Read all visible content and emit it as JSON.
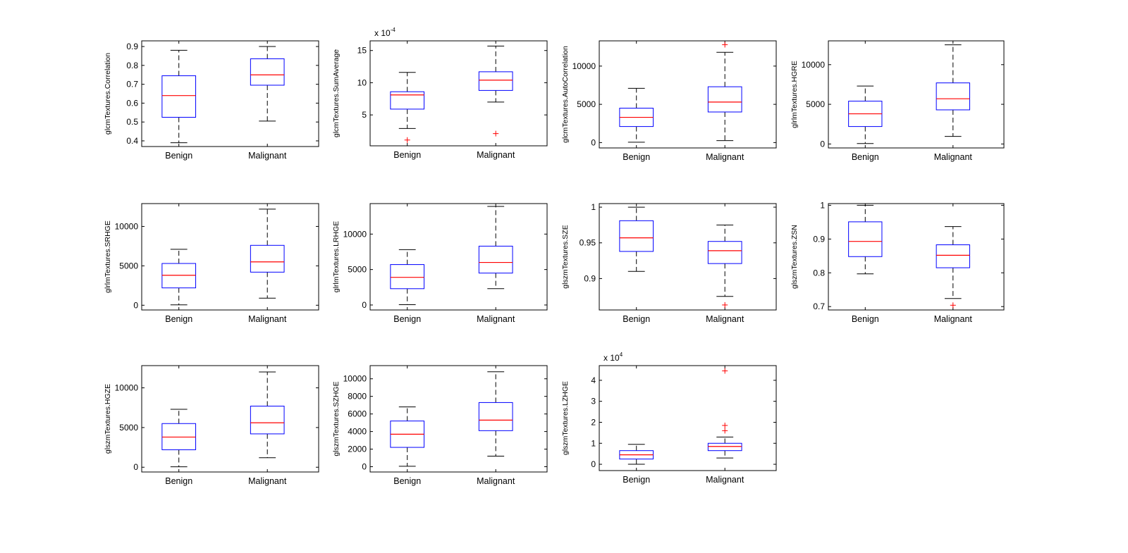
{
  "colors": {
    "box": "#0000ff",
    "median": "#ff0000",
    "outlier": "#ff0000",
    "whisker": "#000000",
    "axes": "#000000"
  },
  "chart_data": [
    {
      "type": "boxplot",
      "ylabel": "glcmTextures.Correlation",
      "ylim": [
        0.37,
        0.93
      ],
      "yticks": [
        0.4,
        0.5,
        0.6,
        0.7,
        0.8,
        0.9
      ],
      "yticklabels": [
        "0.4",
        "0.5",
        "0.6",
        "0.7",
        "0.8",
        "0.9"
      ],
      "exponent": "",
      "categories": [
        "Benign",
        "Malignant"
      ],
      "boxes": [
        {
          "whisker_low": 0.39,
          "q1": 0.525,
          "median": 0.64,
          "q3": 0.745,
          "whisker_high": 0.88,
          "outliers": []
        },
        {
          "whisker_low": 0.505,
          "q1": 0.695,
          "median": 0.75,
          "q3": 0.835,
          "whisker_high": 0.9,
          "outliers": []
        }
      ]
    },
    {
      "type": "boxplot",
      "ylabel": "glcmTextures.SumAverage",
      "ylim": [
        0.2,
        16.5
      ],
      "yticks": [
        5,
        10,
        15
      ],
      "yticklabels": [
        "5",
        "10",
        "15"
      ],
      "exponent": "-4",
      "categories": [
        "Benign",
        "Malignant"
      ],
      "boxes": [
        {
          "whisker_low": 2.9,
          "q1": 5.9,
          "median": 8.1,
          "q3": 8.6,
          "whisker_high": 11.6,
          "outliers": [
            1.1
          ]
        },
        {
          "whisker_low": 7.0,
          "q1": 8.8,
          "median": 10.4,
          "q3": 11.7,
          "whisker_high": 15.7,
          "outliers": [
            2.1
          ]
        }
      ]
    },
    {
      "type": "boxplot",
      "ylabel": "glcmTextures.AutoCorrelation",
      "ylim": [
        -700,
        13300
      ],
      "yticks": [
        0,
        5000,
        10000
      ],
      "yticklabels": [
        "0",
        "5000",
        "10000"
      ],
      "exponent": "",
      "categories": [
        "Benign",
        "Malignant"
      ],
      "boxes": [
        {
          "whisker_low": 50,
          "q1": 2100,
          "median": 3300,
          "q3": 4500,
          "whisker_high": 7100,
          "outliers": []
        },
        {
          "whisker_low": 250,
          "q1": 4000,
          "median": 5300,
          "q3": 7300,
          "whisker_high": 11800,
          "outliers": [
            12800
          ]
        }
      ]
    },
    {
      "type": "boxplot",
      "ylabel": "glrlmTextures.HGRE",
      "ylim": [
        -500,
        13000
      ],
      "yticks": [
        0,
        5000,
        10000
      ],
      "yticklabels": [
        "0",
        "5000",
        "10000"
      ],
      "exponent": "",
      "categories": [
        "Benign",
        "Malignant"
      ],
      "boxes": [
        {
          "whisker_low": 50,
          "q1": 2200,
          "median": 3800,
          "q3": 5400,
          "whisker_high": 7300,
          "outliers": []
        },
        {
          "whisker_low": 950,
          "q1": 4300,
          "median": 5700,
          "q3": 7700,
          "whisker_high": 12500,
          "outliers": []
        }
      ]
    },
    {
      "type": "boxplot",
      "ylabel": "glrlmTextures.SRHGE",
      "ylim": [
        -600,
        12900
      ],
      "yticks": [
        0,
        5000,
        10000
      ],
      "yticklabels": [
        "0",
        "5000",
        "10000"
      ],
      "exponent": "",
      "categories": [
        "Benign",
        "Malignant"
      ],
      "boxes": [
        {
          "whisker_low": 50,
          "q1": 2200,
          "median": 3800,
          "q3": 5300,
          "whisker_high": 7100,
          "outliers": []
        },
        {
          "whisker_low": 900,
          "q1": 4200,
          "median": 5500,
          "q3": 7600,
          "whisker_high": 12200,
          "outliers": []
        }
      ]
    },
    {
      "type": "boxplot",
      "ylabel": "glrlmTextures.LRHGE",
      "ylim": [
        -700,
        14300
      ],
      "yticks": [
        0,
        5000,
        10000
      ],
      "yticklabels": [
        "0",
        "5000",
        "10000"
      ],
      "exponent": "",
      "categories": [
        "Benign",
        "Malignant"
      ],
      "boxes": [
        {
          "whisker_low": 50,
          "q1": 2300,
          "median": 3900,
          "q3": 5700,
          "whisker_high": 7800,
          "outliers": []
        },
        {
          "whisker_low": 2300,
          "q1": 4500,
          "median": 6000,
          "q3": 8300,
          "whisker_high": 13900,
          "outliers": []
        }
      ]
    },
    {
      "type": "boxplot",
      "ylabel": "glszmTextures.SZE",
      "ylim": [
        0.856,
        1.005
      ],
      "yticks": [
        0.9,
        0.95,
        1
      ],
      "yticklabels": [
        "0.9",
        "0.95",
        "1"
      ],
      "exponent": "",
      "categories": [
        "Benign",
        "Malignant"
      ],
      "boxes": [
        {
          "whisker_low": 0.91,
          "q1": 0.938,
          "median": 0.957,
          "q3": 0.981,
          "whisker_high": 1.0,
          "outliers": []
        },
        {
          "whisker_low": 0.875,
          "q1": 0.921,
          "median": 0.939,
          "q3": 0.952,
          "whisker_high": 0.975,
          "outliers": [
            0.863
          ]
        }
      ]
    },
    {
      "type": "boxplot",
      "ylabel": "glszmTextures.ZSN",
      "ylim": [
        0.69,
        1.005
      ],
      "yticks": [
        0.7,
        0.8,
        0.9,
        1
      ],
      "yticklabels": [
        "0.7",
        "0.8",
        "0.9",
        "1"
      ],
      "exponent": "",
      "categories": [
        "Benign",
        "Malignant"
      ],
      "boxes": [
        {
          "whisker_low": 0.797,
          "q1": 0.848,
          "median": 0.893,
          "q3": 0.951,
          "whisker_high": 1.0,
          "outliers": []
        },
        {
          "whisker_low": 0.724,
          "q1": 0.815,
          "median": 0.852,
          "q3": 0.883,
          "whisker_high": 0.937,
          "outliers": [
            0.704
          ]
        }
      ]
    },
    {
      "type": "boxplot",
      "ylabel": "glszmTextures.HGZE",
      "ylim": [
        -600,
        12800
      ],
      "yticks": [
        0,
        5000,
        10000
      ],
      "yticklabels": [
        "0",
        "5000",
        "10000"
      ],
      "exponent": "",
      "categories": [
        "Benign",
        "Malignant"
      ],
      "boxes": [
        {
          "whisker_low": 50,
          "q1": 2200,
          "median": 3800,
          "q3": 5500,
          "whisker_high": 7300,
          "outliers": []
        },
        {
          "whisker_low": 1200,
          "q1": 4200,
          "median": 5600,
          "q3": 7700,
          "whisker_high": 12000,
          "outliers": []
        }
      ]
    },
    {
      "type": "boxplot",
      "ylabel": "glszmTextures.SZHGE",
      "ylim": [
        -600,
        11500
      ],
      "yticks": [
        0,
        2000,
        4000,
        6000,
        8000,
        10000
      ],
      "yticklabels": [
        "0",
        "2000",
        "4000",
        "6000",
        "8000",
        "10000"
      ],
      "exponent": "",
      "categories": [
        "Benign",
        "Malignant"
      ],
      "boxes": [
        {
          "whisker_low": 50,
          "q1": 2200,
          "median": 3700,
          "q3": 5200,
          "whisker_high": 6800,
          "outliers": []
        },
        {
          "whisker_low": 1200,
          "q1": 4100,
          "median": 5300,
          "q3": 7300,
          "whisker_high": 10800,
          "outliers": []
        }
      ]
    },
    {
      "type": "boxplot",
      "ylabel": "glszmTextures.LZHGE",
      "ylim": [
        -0.3,
        4.7
      ],
      "yticks": [
        0,
        1,
        2,
        3,
        4
      ],
      "yticklabels": [
        "0",
        "1",
        "2",
        "3",
        "4"
      ],
      "exponent": "4",
      "categories": [
        "Benign",
        "Malignant"
      ],
      "boxes": [
        {
          "whisker_low": 0.0,
          "q1": 0.25,
          "median": 0.45,
          "q3": 0.65,
          "whisker_high": 0.95,
          "outliers": []
        },
        {
          "whisker_low": 0.3,
          "q1": 0.65,
          "median": 0.85,
          "q3": 1.0,
          "whisker_high": 1.3,
          "outliers": [
            1.6,
            1.85,
            4.45
          ]
        }
      ]
    }
  ]
}
